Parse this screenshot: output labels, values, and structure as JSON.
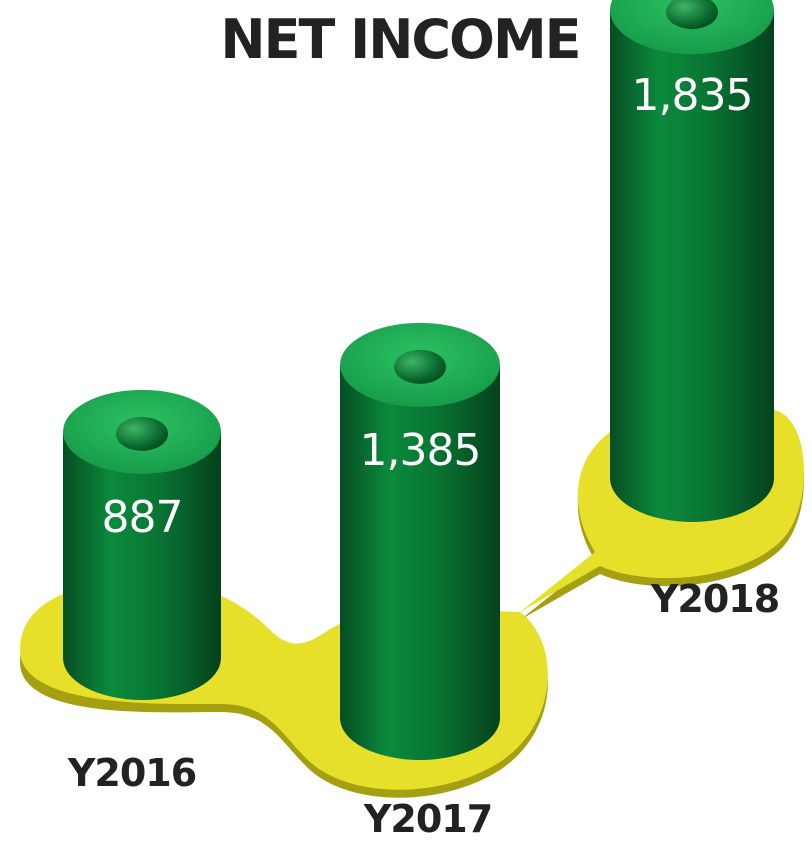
{
  "chart_data": {
    "type": "bar",
    "title": "NET INCOME",
    "categories": [
      "Y2016",
      "Y2017",
      "Y2018"
    ],
    "values": [
      887,
      1385,
      1835
    ],
    "value_labels": [
      "887",
      "1,385",
      "1,835"
    ],
    "xlabel": "",
    "ylabel": "",
    "legend": "none",
    "grid": false
  },
  "colors": {
    "bar_body": "#0a7a35",
    "bar_top": "#1fa852",
    "hole": "#0d6a2f",
    "base_platform": "#e6e02a",
    "base_platform_edge": "#a59f12",
    "text_dark": "#222222",
    "text_value": "#ffffff"
  }
}
